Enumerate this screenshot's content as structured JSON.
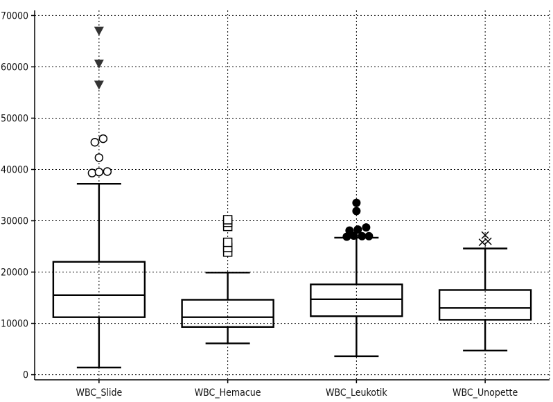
{
  "chart_data": {
    "type": "box",
    "title": "",
    "xlabel": "",
    "ylabel": "",
    "ylim": [
      -1000,
      71000
    ],
    "yticks": [
      0,
      10000,
      20000,
      30000,
      40000,
      50000,
      60000,
      70000
    ],
    "ytick_labels": [
      "0",
      "10000",
      "20000",
      "30000",
      "40000",
      "50000",
      "60000",
      "70000"
    ],
    "grid": true,
    "categories": [
      "WBC_Slide",
      "WBC_Hemacue",
      "WBC_Leukotik",
      "WBC_Unopette"
    ],
    "series": [
      {
        "whisker_low": 1400,
        "q1": 11200,
        "median": 15500,
        "q3": 22000,
        "whisker_high": 37200,
        "outliers": [
          {
            "value": 39300,
            "marker": "open-circle",
            "offset": -10
          },
          {
            "value": 39500,
            "marker": "open-circle",
            "offset": 0
          },
          {
            "value": 39600,
            "marker": "open-circle",
            "offset": 12
          },
          {
            "value": 42300,
            "marker": "open-circle",
            "offset": 0
          },
          {
            "value": 45300,
            "marker": "open-circle",
            "offset": -6
          },
          {
            "value": 46000,
            "marker": "open-circle",
            "offset": 6
          },
          {
            "value": 56500,
            "marker": "filled-triangle",
            "offset": 0
          },
          {
            "value": 60600,
            "marker": "filled-triangle",
            "offset": 0
          },
          {
            "value": 67000,
            "marker": "filled-triangle",
            "offset": 0
          }
        ]
      },
      {
        "whisker_low": 6100,
        "q1": 9300,
        "median": 11200,
        "q3": 14600,
        "whisker_high": 19900,
        "outliers": [
          {
            "value": 23900,
            "marker": "open-square",
            "offset": 0
          },
          {
            "value": 24800,
            "marker": "open-square",
            "offset": 0
          },
          {
            "value": 25800,
            "marker": "open-square",
            "offset": 0
          },
          {
            "value": 28900,
            "marker": "open-square",
            "offset": 0
          },
          {
            "value": 29700,
            "marker": "open-square",
            "offset": 0
          },
          {
            "value": 30200,
            "marker": "open-square",
            "offset": 0
          }
        ]
      },
      {
        "whisker_low": 3600,
        "q1": 11400,
        "median": 14700,
        "q3": 17600,
        "whisker_high": 26700,
        "outliers": [
          {
            "value": 26900,
            "marker": "filled-circle",
            "offset": -14
          },
          {
            "value": 27100,
            "marker": "filled-circle",
            "offset": -4
          },
          {
            "value": 27000,
            "marker": "filled-circle",
            "offset": 8
          },
          {
            "value": 27000,
            "marker": "filled-circle",
            "offset": 18
          },
          {
            "value": 28100,
            "marker": "filled-circle",
            "offset": -10
          },
          {
            "value": 28300,
            "marker": "filled-circle",
            "offset": 2
          },
          {
            "value": 28700,
            "marker": "filled-circle",
            "offset": 14
          },
          {
            "value": 31900,
            "marker": "filled-circle",
            "offset": 0
          },
          {
            "value": 33500,
            "marker": "filled-circle",
            "offset": 0
          }
        ]
      },
      {
        "whisker_low": 4700,
        "q1": 10700,
        "median": 13000,
        "q3": 16500,
        "whisker_high": 24600,
        "outliers": [
          {
            "value": 25800,
            "marker": "x-cross",
            "offset": -4
          },
          {
            "value": 26000,
            "marker": "x-cross",
            "offset": 4
          },
          {
            "value": 27200,
            "marker": "x-cross",
            "offset": 0
          }
        ]
      }
    ]
  }
}
